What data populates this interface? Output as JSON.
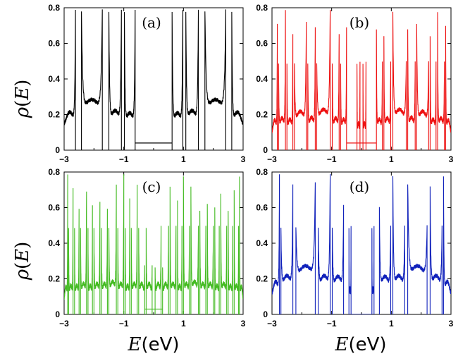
{
  "figure": {
    "ylabel_symbol": "ρ",
    "ylabel_arg": "E",
    "xlabel_symbol": "E",
    "xlabel_unit": "(eV)"
  },
  "chart_data": [
    {
      "type": "line",
      "panel_label": "(a)",
      "color": "#000000",
      "xlim": [
        -3,
        3
      ],
      "ylim": [
        0,
        0.8
      ],
      "xticks": [
        -3,
        -1,
        1,
        3
      ],
      "yticks": [
        0,
        0.2,
        0.4,
        0.6,
        0.8
      ],
      "ytick_labels": [
        "0",
        "0.2",
        "0.4",
        "0.6",
        "0.8"
      ],
      "xtick_labels": [
        "−3",
        "−1",
        "1",
        "3"
      ],
      "ylabel": "ρ(E)",
      "xlabel": "",
      "series": [
        {
          "bands": [
            [
              -3,
              -2.62
            ],
            [
              -2.42,
              -1.72
            ],
            [
              -1.5,
              -1.08
            ],
            [
              -0.98,
              -0.62
            ],
            [
              0.62,
              0.98
            ],
            [
              1.08,
              1.5
            ],
            [
              1.72,
              2.42
            ],
            [
              2.62,
              3
            ]
          ],
          "gap_floor": 0.04,
          "gap_range": [
            -0.62,
            0.62
          ],
          "peaks": [
            [
              -2.62,
              0.8
            ],
            [
              -2.42,
              0.8
            ],
            [
              -1.72,
              0.8
            ],
            [
              -1.5,
              0.8
            ],
            [
              -1.08,
              0.8
            ],
            [
              -0.98,
              0.8
            ],
            [
              -0.62,
              0.8
            ],
            [
              0.62,
              0.8
            ],
            [
              0.98,
              0.8
            ],
            [
              1.08,
              0.8
            ],
            [
              1.5,
              0.8
            ],
            [
              1.72,
              0.8
            ],
            [
              2.42,
              0.8
            ],
            [
              2.62,
              0.8
            ]
          ]
        }
      ]
    },
    {
      "type": "line",
      "panel_label": "(b)",
      "color": "#ee1111",
      "xlim": [
        -3,
        3
      ],
      "ylim": [
        0,
        0.8
      ],
      "xticks": [
        -3,
        -1,
        1,
        3
      ],
      "yticks": [
        0,
        0.2,
        0.4,
        0.6,
        0.8
      ],
      "ytick_labels": [
        "0",
        "0.2",
        "0.4",
        "0.6",
        "0.8"
      ],
      "xtick_labels": [
        "−3",
        "−1",
        "1",
        "3"
      ],
      "ylabel": "",
      "xlabel": "",
      "series": [
        {
          "bands": [
            [
              -3,
              -2.82
            ],
            [
              -2.78,
              -2.55
            ],
            [
              -2.5,
              -2.3
            ],
            [
              -2.25,
              -1.85
            ],
            [
              -1.8,
              -1.55
            ],
            [
              -1.5,
              -1.05
            ],
            [
              -0.98,
              -0.75
            ],
            [
              -0.7,
              -0.5
            ],
            [
              -0.15,
              -0.05
            ],
            [
              0.05,
              0.15
            ],
            [
              0.5,
              0.7
            ],
            [
              0.75,
              0.98
            ],
            [
              1.05,
              1.5
            ],
            [
              1.55,
              1.8
            ],
            [
              1.85,
              2.25
            ],
            [
              2.3,
              2.5
            ],
            [
              2.55,
              2.78
            ],
            [
              2.82,
              3
            ]
          ],
          "gap_floor": 0.04,
          "gap_range": [
            -0.5,
            0.5
          ],
          "peaks": [
            [
              -2.82,
              0.72
            ],
            [
              -2.55,
              0.8
            ],
            [
              -2.3,
              0.66
            ],
            [
              -1.85,
              0.73
            ],
            [
              -1.55,
              0.7
            ],
            [
              -1.05,
              0.8
            ],
            [
              -0.75,
              0.66
            ],
            [
              -0.5,
              0.7
            ],
            [
              -0.1,
              0.22
            ],
            [
              0.1,
              0.22
            ],
            [
              0.5,
              0.7
            ],
            [
              0.75,
              0.66
            ],
            [
              1.05,
              0.8
            ],
            [
              1.55,
              0.7
            ],
            [
              1.85,
              0.73
            ],
            [
              2.3,
              0.66
            ],
            [
              2.55,
              0.8
            ],
            [
              2.82,
              0.72
            ]
          ]
        }
      ]
    },
    {
      "type": "line",
      "panel_label": "(c)",
      "color": "#44bb22",
      "xlim": [
        -3,
        3
      ],
      "ylim": [
        0,
        0.8
      ],
      "xticks": [
        -3,
        -1,
        1,
        3
      ],
      "yticks": [
        0,
        0.2,
        0.4,
        0.6,
        0.8
      ],
      "ytick_labels": [
        "0",
        "0.2",
        "0.4",
        "0.6",
        "0.8"
      ],
      "xtick_labels": [
        "−3",
        "−1",
        "1",
        "3"
      ],
      "ylabel": "ρ(E)",
      "xlabel": "E(eV)",
      "series": [
        {
          "bands": [
            [
              -3,
              -2.88
            ],
            [
              -2.85,
              -2.7
            ],
            [
              -2.65,
              -2.5
            ],
            [
              -2.45,
              -2.25
            ],
            [
              -2.2,
              -2.05
            ],
            [
              -2.0,
              -1.8
            ],
            [
              -1.75,
              -1.55
            ],
            [
              -1.5,
              -1.25
            ],
            [
              -1.2,
              -1.0
            ],
            [
              -0.95,
              -0.8
            ],
            [
              -0.75,
              -0.55
            ],
            [
              -0.5,
              -0.3
            ],
            [
              -0.25,
              -0.05
            ],
            [
              0.05,
              0.25
            ],
            [
              0.3,
              0.5
            ],
            [
              0.55,
              0.75
            ],
            [
              0.8,
              0.95
            ],
            [
              1.0,
              1.2
            ],
            [
              1.25,
              1.5
            ],
            [
              1.55,
              1.75
            ],
            [
              1.8,
              2.0
            ],
            [
              2.05,
              2.2
            ],
            [
              2.25,
              2.45
            ],
            [
              2.5,
              2.65
            ],
            [
              2.7,
              2.85
            ],
            [
              2.88,
              3
            ]
          ],
          "gap_floor": 0.03,
          "gap_range": [
            -0.3,
            0.3
          ],
          "peaks": [
            [
              -2.88,
              0.8
            ],
            [
              -2.7,
              0.72
            ],
            [
              -2.5,
              0.6
            ],
            [
              -2.25,
              0.7
            ],
            [
              -2.05,
              0.62
            ],
            [
              -1.8,
              0.64
            ],
            [
              -1.55,
              0.6
            ],
            [
              -1.25,
              0.74
            ],
            [
              -1.0,
              0.8
            ],
            [
              -0.8,
              0.66
            ],
            [
              -0.55,
              0.74
            ],
            [
              -0.3,
              0.27
            ],
            [
              -0.05,
              0.27
            ],
            [
              0.05,
              0.27
            ],
            [
              0.3,
              0.27
            ],
            [
              0.55,
              0.74
            ],
            [
              0.8,
              0.66
            ],
            [
              1.0,
              0.8
            ],
            [
              1.25,
              0.74
            ],
            [
              1.55,
              0.6
            ],
            [
              1.8,
              0.64
            ],
            [
              2.05,
              0.62
            ],
            [
              2.25,
              0.7
            ],
            [
              2.5,
              0.6
            ],
            [
              2.7,
              0.72
            ],
            [
              2.88,
              0.8
            ]
          ]
        }
      ]
    },
    {
      "type": "line",
      "panel_label": "(d)",
      "color": "#1122bb",
      "xlim": [
        -3,
        3
      ],
      "ylim": [
        0,
        0.8
      ],
      "xticks": [
        -3,
        -1,
        1,
        3
      ],
      "yticks": [
        0,
        0.2,
        0.4,
        0.6,
        0.8
      ],
      "ytick_labels": [
        "0",
        "0.2",
        "0.4",
        "0.6",
        "0.8"
      ],
      "xtick_labels": [
        "−3",
        "−1",
        "1",
        "3"
      ],
      "ylabel": "",
      "xlabel": "E(eV)",
      "series": [
        {
          "bands": [
            [
              -3,
              -2.75
            ],
            [
              -2.7,
              -2.3
            ],
            [
              -2.2,
              -1.55
            ],
            [
              -1.45,
              -1.05
            ],
            [
              -0.98,
              -0.6
            ],
            [
              -0.42,
              -0.35
            ],
            [
              0.35,
              0.42
            ],
            [
              0.6,
              0.98
            ],
            [
              1.05,
              1.45
            ],
            [
              1.55,
              2.2
            ],
            [
              2.3,
              2.7
            ],
            [
              2.75,
              3
            ]
          ],
          "gap_floor": 0.0,
          "gap_range": [
            -0.35,
            0.35
          ],
          "peaks": [
            [
              -2.75,
              0.8
            ],
            [
              -2.3,
              0.74
            ],
            [
              -1.55,
              0.75
            ],
            [
              -1.05,
              0.8
            ],
            [
              -0.6,
              0.62
            ],
            [
              -0.38,
              0.6
            ],
            [
              0.38,
              0.6
            ],
            [
              0.6,
              0.62
            ],
            [
              1.05,
              0.8
            ],
            [
              1.55,
              0.75
            ],
            [
              2.3,
              0.74
            ],
            [
              2.75,
              0.8
            ]
          ]
        }
      ]
    }
  ]
}
